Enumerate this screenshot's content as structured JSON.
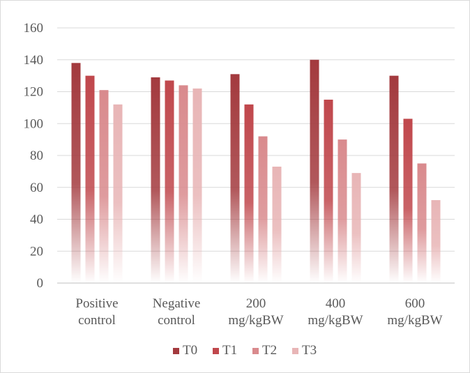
{
  "chart_data": {
    "type": "bar",
    "categories": [
      [
        "Positive",
        "control"
      ],
      [
        "Negative",
        "control"
      ],
      [
        "200",
        "mg/kgBW"
      ],
      [
        "400",
        "mg/kgBW"
      ],
      [
        "600",
        "mg/kgBW"
      ]
    ],
    "series": [
      {
        "name": "T0",
        "values": [
          138,
          129,
          131,
          140,
          130
        ],
        "color": "#a33a3e"
      },
      {
        "name": "T1",
        "values": [
          130,
          127,
          112,
          115,
          103
        ],
        "color": "#c0474c"
      },
      {
        "name": "T2",
        "values": [
          121,
          124,
          92,
          90,
          75
        ],
        "color": "#d98a8d"
      },
      {
        "name": "T3",
        "values": [
          112,
          122,
          73,
          69,
          52
        ],
        "color": "#e8b5b6"
      }
    ],
    "yticks": [
      0,
      20,
      40,
      60,
      80,
      100,
      120,
      140,
      160
    ],
    "ylim": [
      0,
      160
    ],
    "grid": true,
    "legend_position": "bottom"
  }
}
